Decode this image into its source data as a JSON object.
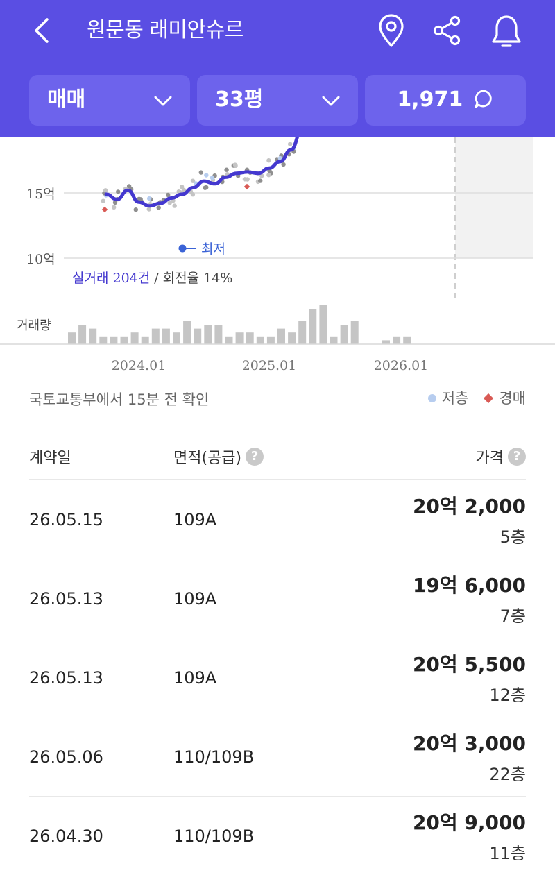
{
  "header": {
    "title": "원문동 래미안슈르",
    "filters": {
      "trade_type": "매매",
      "size": "33평",
      "count": "1,971"
    },
    "colors": {
      "brand": "#5a4ee3",
      "filter_bg": "#6d63ec"
    }
  },
  "chart_data": {
    "type": "line",
    "x_tick_labels": [
      "2024.01",
      "2025.01",
      "2026.01"
    ],
    "y_tick_labels": [
      "15억",
      "10억"
    ],
    "min_label": "최저",
    "summary_left": "실거래 204건",
    "summary_right": "/ 회전율 14%",
    "volume_label": "거래량",
    "series": [
      {
        "name": "",
        "x": [
          "2023.10",
          "2023.11",
          "2023.12",
          "2024.01",
          "2024.02",
          "2024.03",
          "2024.04",
          "2024.05",
          "2024.06",
          "2024.07",
          "2024.08",
          "2024.09",
          "2024.10",
          "2024.11",
          "2024.12",
          "2025.01",
          "2025.02",
          "2025.03",
          "2025.04"
        ],
        "y": [
          14.9,
          14.5,
          15.2,
          14.3,
          14.0,
          14.2,
          14.6,
          14.9,
          15.4,
          15.9,
          15.7,
          16.2,
          16.5,
          16.6,
          16.5,
          16.9,
          17.4,
          18.3,
          19.8
        ]
      }
    ],
    "volume": [
      3,
      5,
      4,
      2,
      2,
      2,
      3,
      2,
      4,
      4,
      3,
      6,
      4,
      5,
      5,
      2,
      3,
      3,
      2,
      2,
      4,
      3,
      6,
      9,
      10,
      2,
      5,
      6,
      0,
      0,
      1,
      2,
      2,
      0,
      0,
      0,
      0,
      0,
      0,
      0,
      0,
      0,
      0,
      0,
      0,
      0,
      0,
      0,
      0,
      0,
      0,
      1,
      2
    ],
    "colors": {
      "line": "#4438cf",
      "point": "#9a9a9a",
      "low_floor": "#b7cdef",
      "auction": "#d95a55",
      "bar": "#c5c5c5"
    }
  },
  "source_note": "국토교통부에서 15분 전 확인",
  "legend": {
    "low_floor": "저층",
    "auction": "경매"
  },
  "table": {
    "headers": {
      "date": "계약일",
      "area": "면적(공급)",
      "price": "가격"
    },
    "rows": [
      {
        "date": "26.05.15",
        "area": "109A",
        "price": "20억 2,000",
        "floor": "5층"
      },
      {
        "date": "26.05.13",
        "area": "109A",
        "price": "19억 6,000",
        "floor": "7층"
      },
      {
        "date": "26.05.13",
        "area": "109A",
        "price": "20억 5,500",
        "floor": "12층"
      },
      {
        "date": "26.05.06",
        "area": "110/109B",
        "price": "20억 3,000",
        "floor": "22층"
      },
      {
        "date": "26.04.30",
        "area": "110/109B",
        "price": "20억 9,000",
        "floor": "11층"
      }
    ]
  }
}
